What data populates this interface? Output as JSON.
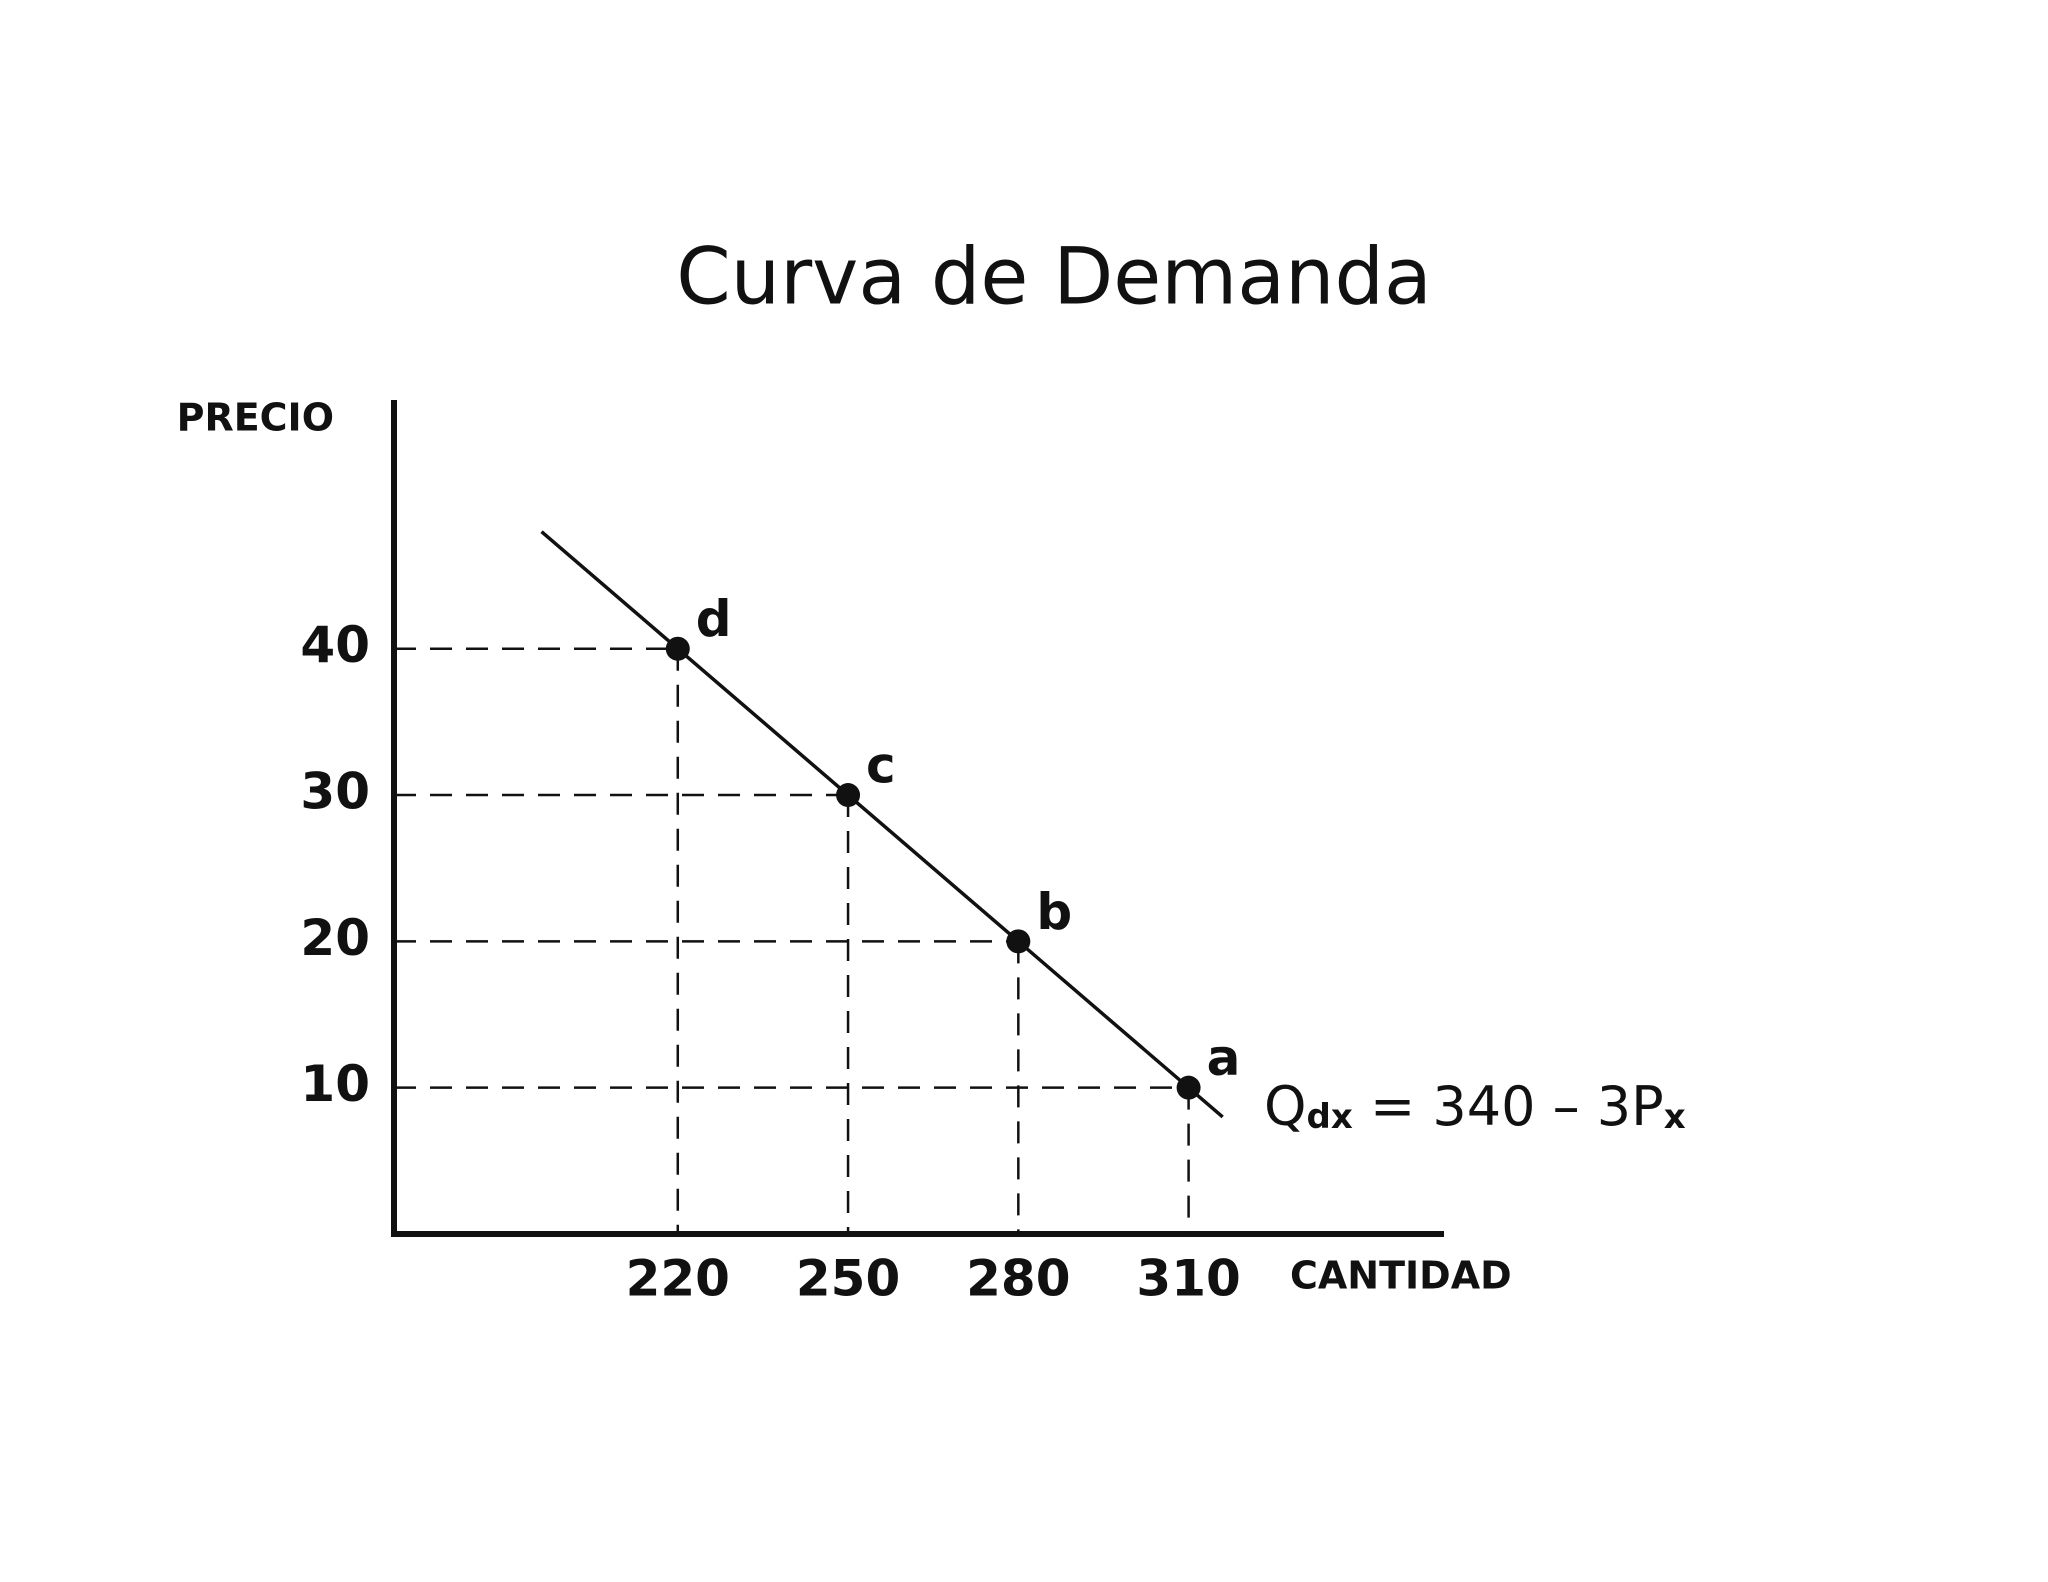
{
  "chart_data": {
    "type": "scatter",
    "title": "Curva de Demanda",
    "y_label": "PRECIO",
    "x_label": "CANTIDAD",
    "x": [
      310,
      280,
      250,
      220
    ],
    "values": [
      10,
      20,
      30,
      40
    ],
    "point_labels": [
      "a",
      "b",
      "c",
      "d"
    ],
    "color": "#111111",
    "line": {
      "x": [
        196,
        316
      ],
      "values": [
        48,
        8
      ]
    },
    "equation": {
      "main": "Q",
      "sub1": "dx",
      "mid": " = 340 – 3P",
      "sub2": "x"
    },
    "xlim": [
      170,
      355
    ],
    "ylim": [
      0,
      57
    ],
    "xticks": [
      220,
      250,
      280,
      310
    ],
    "yticks": [
      10,
      20,
      30,
      40
    ],
    "grid": false,
    "guides": true
  }
}
